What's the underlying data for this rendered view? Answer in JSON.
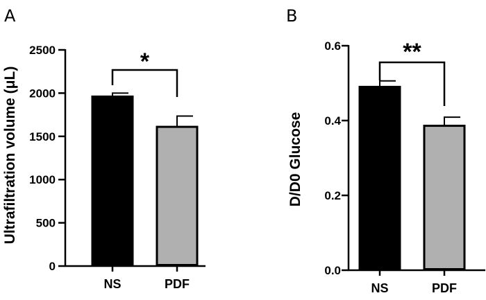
{
  "chart_data": [
    {
      "panel": "A",
      "type": "bar",
      "categories": [
        "NS",
        "PDF"
      ],
      "values": [
        1960,
        1610
      ],
      "errors": [
        40,
        125
      ],
      "bar_colors": [
        "#000000",
        "#b0b0b0"
      ],
      "ylabel": "Ultrafiltration volume (μL)",
      "xlabel": "",
      "ylim": [
        0,
        2500
      ],
      "yticks": [
        "0",
        "500",
        "1000",
        "1500",
        "2000",
        "2500"
      ],
      "significance": "*",
      "grid": false
    },
    {
      "panel": "B",
      "type": "bar",
      "categories": [
        "NS",
        "PDF"
      ],
      "values": [
        0.49,
        0.386
      ],
      "errors": [
        0.016,
        0.023
      ],
      "bar_colors": [
        "#000000",
        "#b0b0b0"
      ],
      "ylabel": "D/D0 Glucose",
      "xlabel": "",
      "ylim": [
        0,
        0.6
      ],
      "yticks": [
        "0.0",
        "0.2",
        "0.4",
        "0.6"
      ],
      "significance": "**",
      "grid": false
    }
  ]
}
